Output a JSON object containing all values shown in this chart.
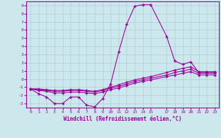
{
  "xlabel": "Windchill (Refroidissement éolien,°C)",
  "bg_color": "#cde8ec",
  "line_color": "#990099",
  "grid_color": "#a8cdd4",
  "xlim": [
    -0.5,
    23.5
  ],
  "ylim": [
    -3.5,
    9.5
  ],
  "xticks": [
    0,
    1,
    2,
    3,
    4,
    5,
    6,
    7,
    8,
    9,
    10,
    11,
    12,
    13,
    14,
    15,
    17,
    18,
    19,
    20,
    21,
    22,
    23
  ],
  "yticks": [
    -3,
    -2,
    -1,
    0,
    1,
    2,
    3,
    4,
    5,
    6,
    7,
    8,
    9
  ],
  "line1_x": [
    0,
    1,
    2,
    3,
    4,
    5,
    6,
    7,
    8,
    9,
    10,
    11,
    12,
    13,
    14,
    15,
    17,
    18,
    19,
    20,
    21,
    22,
    23
  ],
  "line1_y": [
    -1.2,
    -1.8,
    -2.2,
    -3.0,
    -3.0,
    -2.2,
    -2.2,
    -3.2,
    -3.4,
    -2.4,
    -0.6,
    3.3,
    6.7,
    8.9,
    9.1,
    9.1,
    5.2,
    2.2,
    1.8,
    2.1,
    0.8,
    0.8,
    0.8
  ],
  "line2_x": [
    0,
    1,
    2,
    3,
    4,
    5,
    6,
    7,
    8,
    9,
    10,
    11,
    12,
    13,
    14,
    15,
    17,
    18,
    19,
    20,
    21,
    22,
    23
  ],
  "line2_y": [
    -1.2,
    -1.4,
    -1.5,
    -1.7,
    -1.7,
    -1.6,
    -1.6,
    -1.7,
    -1.8,
    -1.6,
    -1.3,
    -1.1,
    -0.8,
    -0.5,
    -0.3,
    -0.1,
    0.3,
    0.5,
    0.7,
    0.9,
    0.5,
    0.5,
    0.5
  ],
  "line3_x": [
    0,
    1,
    2,
    3,
    4,
    5,
    6,
    7,
    8,
    9,
    10,
    11,
    12,
    13,
    14,
    15,
    17,
    18,
    19,
    20,
    21,
    22,
    23
  ],
  "line3_y": [
    -1.2,
    -1.3,
    -1.4,
    -1.5,
    -1.5,
    -1.4,
    -1.4,
    -1.5,
    -1.6,
    -1.4,
    -1.1,
    -0.9,
    -0.6,
    -0.3,
    -0.1,
    0.1,
    0.5,
    0.8,
    1.0,
    1.2,
    0.7,
    0.7,
    0.7
  ],
  "line4_x": [
    0,
    1,
    2,
    3,
    4,
    5,
    6,
    7,
    8,
    9,
    10,
    11,
    12,
    13,
    14,
    15,
    17,
    18,
    19,
    20,
    21,
    22,
    23
  ],
  "line4_y": [
    -1.2,
    -1.2,
    -1.3,
    -1.4,
    -1.4,
    -1.3,
    -1.3,
    -1.4,
    -1.5,
    -1.3,
    -1.0,
    -0.7,
    -0.4,
    -0.1,
    0.1,
    0.3,
    0.8,
    1.1,
    1.3,
    1.5,
    0.9,
    0.9,
    0.9
  ]
}
